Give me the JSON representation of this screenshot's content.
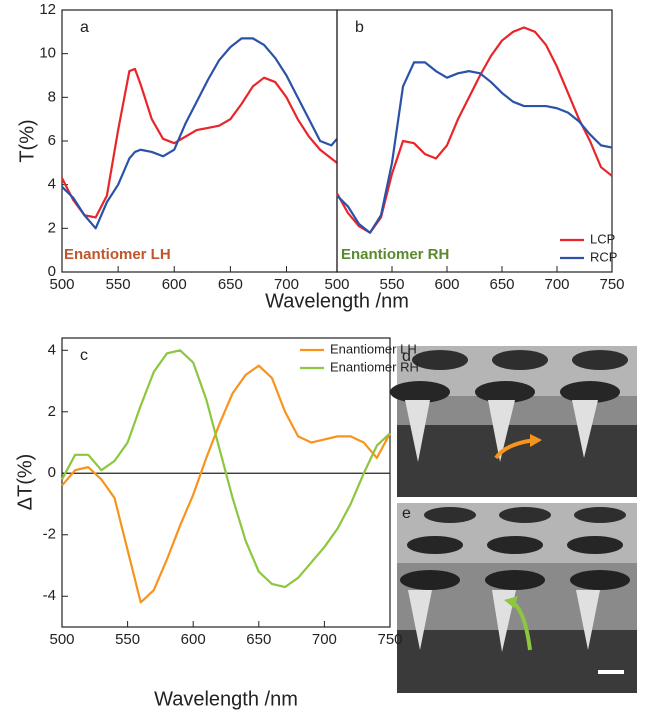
{
  "chart_data": [
    {
      "type": "line",
      "panel_label": "a",
      "ylabel": "T(%)",
      "xlabel": "Wavelength /nm",
      "annotation": "Enantiomer  LH",
      "annotation_color": "#c0562a",
      "xlim": [
        500,
        745
      ],
      "xticks": [
        500,
        550,
        600,
        650,
        700
      ],
      "ylim": [
        0,
        12
      ],
      "yticks": [
        0,
        2,
        4,
        6,
        8,
        10,
        12
      ],
      "x": [
        500,
        510,
        520,
        530,
        540,
        550,
        560,
        565,
        570,
        580,
        590,
        600,
        610,
        620,
        630,
        640,
        650,
        660,
        670,
        680,
        690,
        700,
        710,
        720,
        730,
        740,
        745
      ],
      "series": [
        {
          "name": "LCP",
          "color": "#e8262a",
          "values": [
            4.3,
            3.3,
            2.6,
            2.5,
            3.5,
            6.5,
            9.2,
            9.3,
            8.6,
            7.0,
            6.1,
            5.9,
            6.2,
            6.5,
            6.6,
            6.7,
            7.0,
            7.7,
            8.5,
            8.9,
            8.7,
            8.0,
            7.0,
            6.2,
            5.6,
            5.2,
            5.0
          ]
        },
        {
          "name": "RCP",
          "color": "#2a52a8",
          "values": [
            3.9,
            3.4,
            2.6,
            2.0,
            3.2,
            4.0,
            5.2,
            5.5,
            5.6,
            5.5,
            5.3,
            5.6,
            6.8,
            7.8,
            8.8,
            9.7,
            10.3,
            10.7,
            10.7,
            10.4,
            9.8,
            9.0,
            8.0,
            7.0,
            6.0,
            5.8,
            6.1
          ]
        }
      ]
    },
    {
      "type": "line",
      "panel_label": "b",
      "annotation": "Enantiomer  RH",
      "annotation_color": "#5a8a2f",
      "legend": "lower right",
      "xlim": [
        500,
        750
      ],
      "xticks": [
        500,
        550,
        600,
        650,
        700,
        750
      ],
      "ylim": [
        0,
        12
      ],
      "x": [
        500,
        510,
        520,
        530,
        540,
        550,
        560,
        570,
        580,
        590,
        600,
        610,
        620,
        630,
        640,
        650,
        660,
        670,
        680,
        690,
        700,
        710,
        720,
        730,
        740,
        750
      ],
      "series": [
        {
          "name": "LCP",
          "color": "#e8262a",
          "values": [
            3.6,
            2.7,
            2.1,
            1.8,
            2.5,
            4.5,
            6.0,
            5.9,
            5.4,
            5.2,
            5.8,
            7.0,
            8.0,
            9.0,
            9.9,
            10.6,
            11.0,
            11.2,
            11.0,
            10.4,
            9.4,
            8.2,
            7.0,
            6.0,
            4.8,
            4.4
          ]
        },
        {
          "name": "RCP",
          "color": "#2a52a8",
          "values": [
            3.5,
            3.0,
            2.2,
            1.8,
            2.6,
            5.0,
            8.5,
            9.6,
            9.6,
            9.2,
            8.9,
            9.1,
            9.2,
            9.1,
            8.7,
            8.2,
            7.8,
            7.6,
            7.6,
            7.6,
            7.5,
            7.3,
            6.9,
            6.3,
            5.8,
            5.7
          ]
        }
      ]
    },
    {
      "type": "line",
      "panel_label": "c",
      "ylabel": "ΔT(%)",
      "xlabel": "Wavelength /nm",
      "legend": "upper right",
      "zero_line": true,
      "xlim": [
        500,
        750
      ],
      "xticks": [
        500,
        550,
        600,
        650,
        700,
        750
      ],
      "ylim": [
        -5,
        4.4
      ],
      "yticks": [
        -4,
        -2,
        0,
        2,
        4
      ],
      "x": [
        500,
        510,
        520,
        530,
        540,
        550,
        560,
        570,
        580,
        590,
        600,
        610,
        620,
        630,
        640,
        650,
        660,
        670,
        680,
        690,
        700,
        710,
        720,
        730,
        740,
        750
      ],
      "series": [
        {
          "name": "Enantiomer LH",
          "color": "#f7941d",
          "values": [
            -0.4,
            0.1,
            0.2,
            -0.2,
            -0.8,
            -2.5,
            -4.2,
            -3.8,
            -2.8,
            -1.7,
            -0.7,
            0.5,
            1.6,
            2.6,
            3.2,
            3.5,
            3.1,
            2.0,
            1.2,
            1.0,
            1.1,
            1.2,
            1.2,
            1.0,
            0.5,
            1.3
          ]
        },
        {
          "name": "Enantiomer RH",
          "color": "#8dc63f",
          "values": [
            -0.2,
            0.6,
            0.6,
            0.1,
            0.4,
            1.0,
            2.2,
            3.3,
            3.9,
            4.0,
            3.6,
            2.4,
            0.8,
            -0.8,
            -2.2,
            -3.2,
            -3.6,
            -3.7,
            -3.4,
            -2.9,
            -2.4,
            -1.8,
            -1.0,
            0.0,
            0.9,
            1.3
          ]
        }
      ]
    }
  ],
  "images": [
    {
      "panel_label": "d"
    },
    {
      "panel_label": "e"
    }
  ]
}
